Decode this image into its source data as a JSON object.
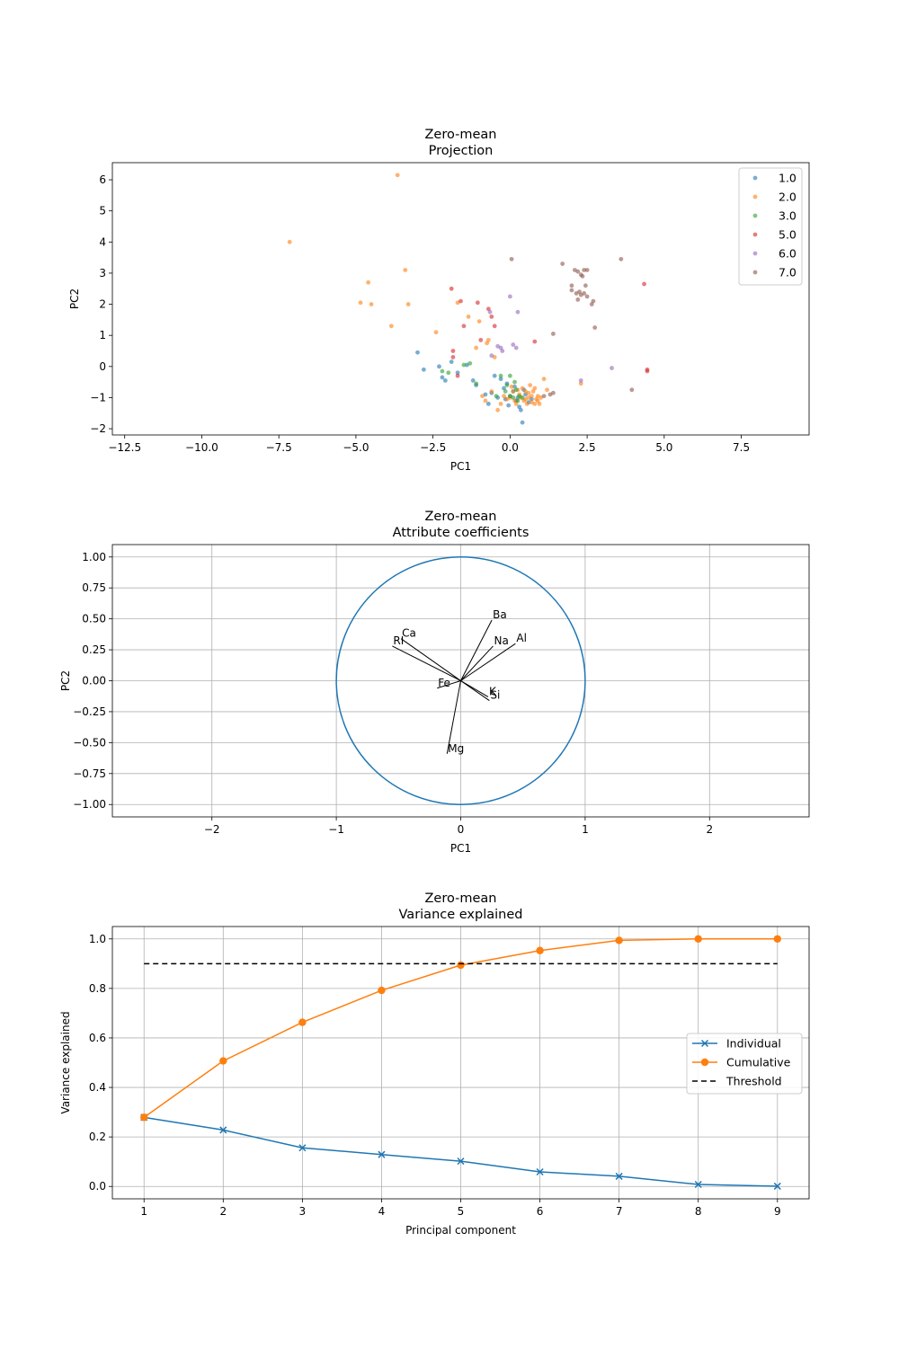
{
  "chart_data": [
    {
      "type": "scatter",
      "title": [
        "Zero-mean",
        "Projection"
      ],
      "xlabel": "PC1",
      "ylabel": "PC2",
      "xlim": [
        -12.9,
        9.7
      ],
      "ylim": [
        -2.2,
        6.55
      ],
      "xticks": [
        -12.5,
        -10.0,
        -7.5,
        -5.0,
        -2.5,
        0.0,
        2.5,
        5.0,
        7.5
      ],
      "yticks": [
        -2,
        -1,
        0,
        1,
        2,
        3,
        4,
        5,
        6
      ],
      "grid": false,
      "legend": "top-right",
      "series": [
        {
          "name": "1.0",
          "color": "#1f77b4",
          "points": [
            [
              -3.0,
              0.45
            ],
            [
              -2.8,
              -0.1
            ],
            [
              -2.3,
              0.0
            ],
            [
              -2.2,
              -0.35
            ],
            [
              -2.1,
              -0.45
            ],
            [
              -1.9,
              0.15
            ],
            [
              -1.7,
              -0.2
            ],
            [
              -1.4,
              0.05
            ],
            [
              -1.2,
              -0.45
            ],
            [
              -1.1,
              -0.6
            ],
            [
              -0.8,
              -0.9
            ],
            [
              -0.7,
              -1.2
            ],
            [
              -0.5,
              -0.3
            ],
            [
              -0.3,
              -0.4
            ],
            [
              -0.1,
              -0.55
            ],
            [
              0.1,
              -0.8
            ],
            [
              0.2,
              -1.1
            ],
            [
              0.3,
              -1.3
            ],
            [
              0.35,
              -1.4
            ],
            [
              0.4,
              -1.8
            ],
            [
              0.5,
              -0.9
            ],
            [
              0.6,
              -1.15
            ],
            [
              -0.4,
              -1.0
            ],
            [
              -0.2,
              -0.7
            ],
            [
              0.0,
              -0.95
            ],
            [
              0.15,
              -0.65
            ],
            [
              -0.6,
              -0.85
            ],
            [
              0.25,
              -1.0
            ],
            [
              0.45,
              -0.75
            ],
            [
              -0.05,
              -1.25
            ],
            [
              0.7,
              -1.05
            ],
            [
              -0.15,
              -1.05
            ]
          ]
        },
        {
          "name": "2.0",
          "color": "#ff7f0e",
          "points": [
            [
              -3.65,
              6.15
            ],
            [
              -7.15,
              4.0
            ],
            [
              -3.4,
              3.1
            ],
            [
              -4.6,
              2.7
            ],
            [
              -4.85,
              2.05
            ],
            [
              -4.5,
              2.0
            ],
            [
              -3.3,
              2.0
            ],
            [
              -3.85,
              1.3
            ],
            [
              -2.4,
              1.1
            ],
            [
              -1.35,
              1.6
            ],
            [
              -1.0,
              1.45
            ],
            [
              -0.75,
              0.75
            ],
            [
              -0.7,
              0.85
            ],
            [
              -1.1,
              0.6
            ],
            [
              -0.5,
              0.3
            ],
            [
              -1.7,
              2.05
            ],
            [
              -0.4,
              -1.4
            ],
            [
              -0.8,
              -1.1
            ],
            [
              -0.9,
              -0.95
            ],
            [
              -0.6,
              -0.8
            ],
            [
              -0.3,
              -1.2
            ],
            [
              0.0,
              -1.0
            ],
            [
              0.1,
              -0.8
            ],
            [
              0.2,
              -1.2
            ],
            [
              0.3,
              -0.9
            ],
            [
              0.4,
              -0.7
            ],
            [
              0.5,
              -1.05
            ],
            [
              0.6,
              -0.85
            ],
            [
              0.7,
              -1.15
            ],
            [
              0.8,
              -1.2
            ],
            [
              0.9,
              -0.95
            ],
            [
              1.0,
              -1.0
            ],
            [
              1.1,
              -0.4
            ],
            [
              0.75,
              -0.8
            ],
            [
              0.55,
              -1.2
            ],
            [
              0.65,
              -0.6
            ],
            [
              0.45,
              -1.1
            ],
            [
              0.85,
              -1.05
            ],
            [
              0.95,
              -1.2
            ],
            [
              1.2,
              -0.75
            ],
            [
              2.3,
              -0.55
            ],
            [
              0.35,
              -1.0
            ],
            [
              0.15,
              -1.1
            ],
            [
              -0.1,
              -1.05
            ],
            [
              0.25,
              -0.75
            ],
            [
              0.05,
              -0.65
            ],
            [
              -0.2,
              -0.95
            ],
            [
              0.7,
              -0.95
            ],
            [
              0.8,
              -0.7
            ],
            [
              0.9,
              -1.1
            ],
            [
              0.5,
              -0.8
            ],
            [
              0.6,
              -1.0
            ]
          ]
        },
        {
          "name": "3.0",
          "color": "#2ca02c",
          "points": [
            [
              -2.2,
              -0.15
            ],
            [
              -2.0,
              -0.2
            ],
            [
              -1.5,
              0.05
            ],
            [
              -1.3,
              0.1
            ],
            [
              -1.1,
              -0.55
            ],
            [
              -0.3,
              -0.3
            ],
            [
              -0.1,
              -0.6
            ],
            [
              0.0,
              -0.95
            ],
            [
              0.1,
              -1.0
            ],
            [
              0.2,
              -0.75
            ],
            [
              0.3,
              -0.95
            ],
            [
              0.0,
              -0.3
            ],
            [
              -0.15,
              -0.8
            ],
            [
              0.15,
              -0.5
            ],
            [
              -0.45,
              -0.95
            ],
            [
              0.25,
              -1.1
            ],
            [
              0.4,
              -1.0
            ]
          ]
        },
        {
          "name": "5.0",
          "color": "#d62728",
          "points": [
            [
              -1.9,
              2.5
            ],
            [
              -1.6,
              2.1
            ],
            [
              -1.05,
              2.05
            ],
            [
              -0.6,
              1.6
            ],
            [
              -0.7,
              1.85
            ],
            [
              -0.95,
              0.85
            ],
            [
              -1.85,
              0.5
            ],
            [
              -1.85,
              0.3
            ],
            [
              -1.5,
              1.3
            ],
            [
              -0.5,
              1.3
            ],
            [
              0.8,
              0.8
            ],
            [
              4.35,
              2.65
            ],
            [
              4.45,
              -0.1
            ],
            [
              4.45,
              -0.15
            ],
            [
              -1.7,
              -0.3
            ]
          ]
        },
        {
          "name": "6.0",
          "color": "#9467bd",
          "points": [
            [
              -0.65,
              1.75
            ],
            [
              0.0,
              2.25
            ],
            [
              0.25,
              1.75
            ],
            [
              -0.3,
              0.6
            ],
            [
              -0.25,
              0.5
            ],
            [
              0.1,
              0.7
            ],
            [
              0.2,
              0.6
            ],
            [
              -0.6,
              0.35
            ],
            [
              2.3,
              -0.45
            ],
            [
              3.3,
              -0.05
            ],
            [
              -0.4,
              0.65
            ]
          ]
        },
        {
          "name": "7.0",
          "color": "#8c564b",
          "points": [
            [
              0.05,
              3.45
            ],
            [
              1.7,
              3.3
            ],
            [
              2.1,
              3.1
            ],
            [
              2.2,
              3.05
            ],
            [
              2.3,
              2.95
            ],
            [
              2.4,
              3.1
            ],
            [
              2.5,
              3.1
            ],
            [
              2.35,
              2.9
            ],
            [
              2.0,
              2.6
            ],
            [
              2.0,
              2.45
            ],
            [
              2.15,
              2.35
            ],
            [
              2.3,
              2.3
            ],
            [
              2.4,
              2.35
            ],
            [
              2.5,
              2.25
            ],
            [
              2.2,
              2.15
            ],
            [
              2.7,
              2.1
            ],
            [
              2.75,
              1.25
            ],
            [
              3.6,
              3.45
            ],
            [
              1.4,
              1.05
            ],
            [
              1.4,
              -0.85
            ],
            [
              3.95,
              -0.75
            ],
            [
              2.65,
              2.0
            ],
            [
              2.25,
              2.4
            ],
            [
              2.45,
              2.6
            ],
            [
              1.3,
              -0.9
            ],
            [
              1.1,
              -0.95
            ]
          ]
        }
      ]
    },
    {
      "type": "biplot",
      "title": [
        "Zero-mean",
        "Attribute coefficients"
      ],
      "xlabel": "PC1",
      "ylabel": "PC2",
      "xlim": [
        -2.8,
        2.8
      ],
      "ylim": [
        -1.1,
        1.1
      ],
      "xticks": [
        -2,
        -1,
        0,
        1,
        2
      ],
      "yticks": [
        -1.0,
        -0.75,
        -0.5,
        -0.25,
        0.0,
        0.25,
        0.5,
        0.75,
        1.0
      ],
      "grid": true,
      "circle_radius": 1,
      "circle_color": "#1f77b4",
      "vectors": [
        {
          "label": "RI",
          "dx": -0.55,
          "dy": 0.28
        },
        {
          "label": "Na",
          "dx": 0.26,
          "dy": 0.28
        },
        {
          "label": "Mg",
          "dx": -0.11,
          "dy": -0.59
        },
        {
          "label": "Al",
          "dx": 0.44,
          "dy": 0.3
        },
        {
          "label": "Si",
          "dx": 0.23,
          "dy": -0.16
        },
        {
          "label": "K",
          "dx": 0.22,
          "dy": -0.13
        },
        {
          "label": "Ca",
          "dx": -0.48,
          "dy": 0.34
        },
        {
          "label": "Ba",
          "dx": 0.25,
          "dy": 0.49
        },
        {
          "label": "Fe",
          "dx": -0.19,
          "dy": -0.06
        }
      ]
    },
    {
      "type": "line",
      "title": [
        "Zero-mean",
        "Variance explained"
      ],
      "xlabel": "Principal component",
      "ylabel": "Variance explained",
      "x": [
        1,
        2,
        3,
        4,
        5,
        6,
        7,
        8,
        9
      ],
      "xlim": [
        0.6,
        9.4
      ],
      "ylim": [
        -0.05,
        1.05
      ],
      "xticks": [
        1,
        2,
        3,
        4,
        5,
        6,
        7,
        8,
        9
      ],
      "yticks": [
        0.0,
        0.2,
        0.4,
        0.6,
        0.8,
        1.0
      ],
      "grid": true,
      "legend": "center-right",
      "series": [
        {
          "name": "Individual",
          "color": "#1f77b4",
          "marker": "x",
          "values": [
            0.279,
            0.228,
            0.156,
            0.129,
            0.102,
            0.059,
            0.041,
            0.008,
            0.001
          ]
        },
        {
          "name": "Cumulative",
          "color": "#ff7f0e",
          "marker": "o",
          "values": [
            0.279,
            0.507,
            0.663,
            0.792,
            0.894,
            0.953,
            0.994,
            1.0,
            1.0
          ]
        },
        {
          "name": "Threshold",
          "color": "#000000",
          "marker": "dashed",
          "value": 0.9
        }
      ]
    }
  ]
}
